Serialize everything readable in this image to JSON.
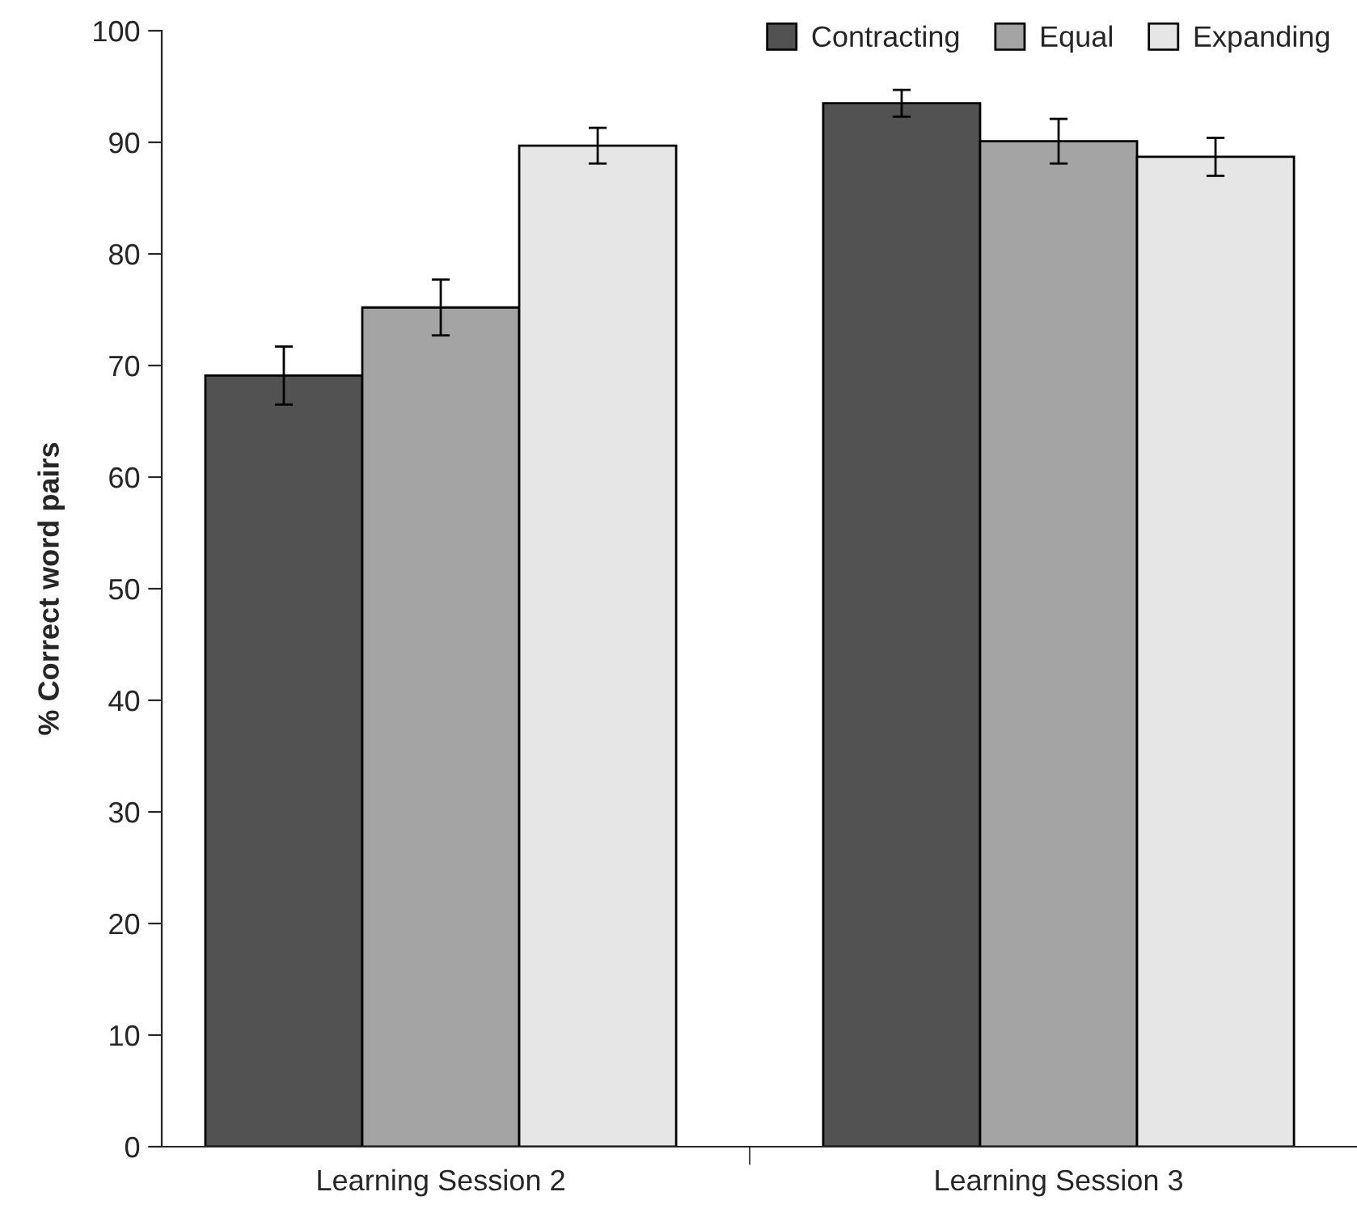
{
  "chart_data": {
    "type": "bar",
    "ylabel": "% Correct word pairs",
    "categories": [
      "Learning Session 2",
      "Learning Session 3"
    ],
    "series": [
      {
        "name": "Contracting",
        "color": "#525252",
        "values": [
          69.1,
          93.5
        ],
        "errors": [
          2.6,
          1.2
        ]
      },
      {
        "name": "Equal",
        "color": "#a3a4a3",
        "values": [
          75.2,
          90.1
        ],
        "errors": [
          2.5,
          2.0
        ]
      },
      {
        "name": "Expanding",
        "color": "#e6e6e6",
        "values": [
          89.7,
          88.7
        ],
        "errors": [
          1.6,
          1.7
        ]
      }
    ],
    "ylim": [
      0,
      100
    ],
    "yticks": [
      0,
      10,
      20,
      30,
      40,
      50,
      60,
      70,
      80,
      90,
      100
    ],
    "grid": false,
    "legend": "top right"
  }
}
